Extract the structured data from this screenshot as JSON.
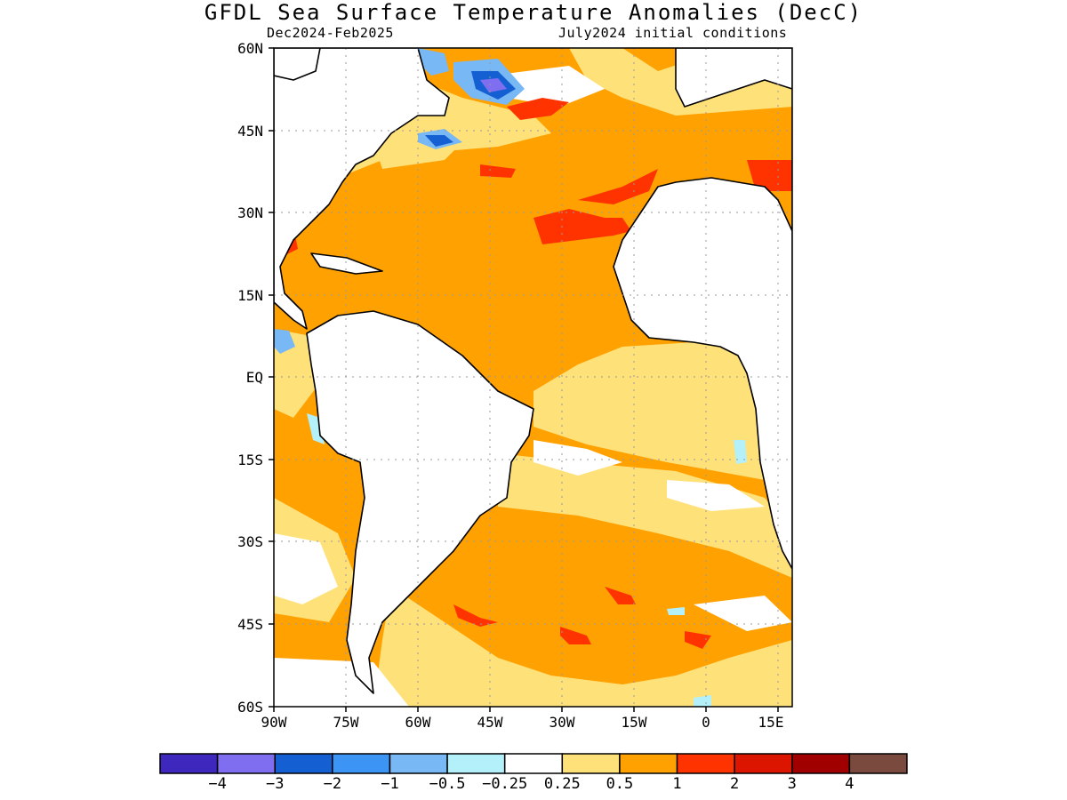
{
  "header": {
    "title": "GFDL Sea Surface Temperature Anomalies (DecC)",
    "period": "Dec2024-Feb2025",
    "init": "July2024 initial conditions"
  },
  "map": {
    "projection": "equirectangular",
    "lon_range": [
      -90,
      18
    ],
    "lat_range": [
      -60,
      60
    ],
    "grid": true,
    "lat_labels": [
      "60N",
      "45N",
      "30N",
      "15N",
      "EQ",
      "15S",
      "30S",
      "45S",
      "60S"
    ],
    "lon_labels": [
      "90W",
      "75W",
      "60W",
      "45W",
      "30W",
      "15W",
      "0",
      "15E"
    ]
  },
  "legend": {
    "colors": [
      "#3d27bd",
      "#7f6ff0",
      "#1460d2",
      "#3c95f5",
      "#78b8f5",
      "#b4f0fa",
      "#ffffff",
      "#ffe17a",
      "#ffa100",
      "#ff3300",
      "#dc1500",
      "#a10000",
      "#7a4a3e"
    ],
    "labels": [
      "-4",
      "-3",
      "-2",
      "-1",
      "-0.5",
      "-0.25",
      "0.25",
      "0.5",
      "1",
      "2",
      "3",
      "4"
    ]
  }
}
